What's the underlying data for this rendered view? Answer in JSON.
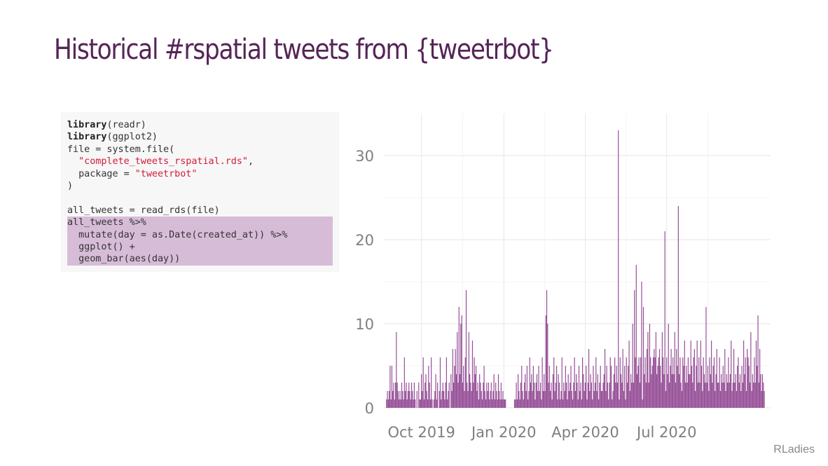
{
  "slide": {
    "title": "Historical #rspatial tweets from {tweetrbot}",
    "footer": "RLadies"
  },
  "code": {
    "lines": [
      {
        "k": "library",
        "r": "(readr)"
      },
      {
        "k": "library",
        "r": "(ggplot2)"
      },
      {
        "t": "file = system.file("
      },
      {
        "s": "\"complete_tweets_rspatial.rds\"",
        "r": ",",
        "indent": "  "
      },
      {
        "t": "  package = ",
        "s": "\"tweetrbot\""
      },
      {
        "t": ")"
      },
      {
        "t": ""
      },
      {
        "t": "all_tweets = read_rds(file)"
      },
      {
        "t": "all_tweets %>%",
        "hl": true
      },
      {
        "t": "  mutate(day = as.Date(created_at)) %>%",
        "hl": true
      },
      {
        "t": "  ggplot() +",
        "hl": true
      },
      {
        "t": "  geom_bar(aes(day))",
        "hl": true
      }
    ]
  },
  "colors": {
    "title": "#562457",
    "bars": "#88398a",
    "highlight": "#d7bcd8",
    "string": "#d01c39",
    "grid": "#ebebeb",
    "axis_text": "#7f7f7f"
  },
  "chart_data": {
    "type": "bar",
    "xlabel": "",
    "ylabel": "",
    "x_range": [
      "2019-08-20",
      "2020-10-25"
    ],
    "ylim": [
      0,
      35
    ],
    "y_ticks": [
      0,
      10,
      20,
      30
    ],
    "x_ticks": [
      {
        "date": "2019-10-01",
        "label": "Oct 2019"
      },
      {
        "date": "2020-01-01",
        "label": "Jan 2020"
      },
      {
        "date": "2020-04-01",
        "label": "Apr 2020"
      },
      {
        "date": "2020-07-01",
        "label": "Jul 2020"
      }
    ],
    "grid": true,
    "legend": "none",
    "series": [
      {
        "start_date": "2019-08-23",
        "values": [
          1,
          2,
          1,
          2,
          5,
          1,
          5,
          2,
          3,
          1,
          3,
          9,
          3,
          2,
          1,
          2,
          1,
          3,
          2,
          1,
          6,
          2,
          3,
          1,
          2,
          3,
          2,
          1,
          3,
          2,
          1,
          3,
          1,
          0,
          2,
          0,
          3,
          1,
          1,
          4,
          2,
          6,
          1,
          3,
          4,
          2,
          1,
          5,
          3,
          1,
          6,
          1,
          0,
          1,
          2,
          4,
          1,
          3,
          0,
          2,
          6,
          1,
          2,
          3,
          2,
          1,
          3,
          6,
          1,
          2,
          3,
          0,
          4,
          2,
          7,
          3,
          5,
          7,
          4,
          9,
          3,
          12,
          4,
          10,
          11,
          3,
          5,
          2,
          6,
          14,
          3,
          2,
          9,
          4,
          3,
          2,
          8,
          3,
          6,
          4,
          5,
          2,
          3,
          1,
          4,
          3,
          2,
          1,
          3,
          5,
          2,
          1,
          3,
          2,
          3,
          1,
          2,
          3,
          1,
          2,
          4,
          1,
          3,
          2,
          1,
          4,
          2,
          1,
          3,
          1,
          2,
          1,
          1,
          1,
          0,
          0,
          0,
          0,
          0,
          0,
          0,
          0,
          0,
          1,
          1,
          3,
          1,
          4,
          2,
          1,
          3,
          5,
          2,
          1,
          3,
          4,
          2,
          5,
          1,
          2,
          6,
          3,
          4,
          2,
          5,
          3,
          1,
          3,
          4,
          2,
          5,
          2,
          3,
          1,
          6,
          2,
          4,
          2,
          11,
          14,
          10,
          3,
          5,
          2,
          3,
          1,
          4,
          6,
          2,
          3,
          5,
          1,
          4,
          3,
          1,
          2,
          6,
          1,
          3,
          2,
          5,
          3,
          1,
          4,
          2,
          3,
          5,
          2,
          1,
          3,
          6,
          2,
          4,
          3,
          1,
          5,
          2,
          3,
          1,
          6,
          4,
          2,
          3,
          5,
          1,
          3,
          7,
          2,
          4,
          3,
          1,
          5,
          2,
          3,
          6,
          2,
          4,
          1,
          3,
          5,
          2,
          2,
          3,
          4,
          7,
          2,
          5,
          3,
          1,
          3,
          6,
          5,
          1,
          2,
          4,
          6,
          3,
          5,
          3,
          33,
          1,
          6,
          4,
          3,
          7,
          2,
          5,
          1,
          6,
          3,
          5,
          8,
          2,
          4,
          3,
          10,
          3,
          14,
          6,
          17,
          4,
          5,
          6,
          3,
          6,
          15,
          1,
          12,
          4,
          6,
          3,
          7,
          9,
          3,
          10,
          6,
          4,
          5,
          6,
          7,
          6,
          9,
          4,
          5,
          6,
          7,
          5,
          3,
          9,
          6,
          4,
          21,
          2,
          6,
          4,
          10,
          3,
          5,
          7,
          4,
          6,
          4,
          9,
          3,
          7,
          5,
          24,
          4,
          6,
          3,
          2,
          6,
          5,
          8,
          3,
          5,
          3,
          6,
          4,
          4,
          8,
          5,
          3,
          6,
          7,
          2,
          5,
          8,
          3,
          6,
          3,
          8,
          5,
          2,
          6,
          4,
          3,
          12,
          3,
          5,
          2,
          6,
          4,
          8,
          3,
          5,
          6,
          2,
          4,
          7,
          3,
          3,
          6,
          2,
          4,
          3,
          5,
          3,
          7,
          2,
          4,
          3,
          6,
          3,
          4,
          8,
          2,
          3,
          7,
          3,
          4,
          2,
          5,
          6,
          3,
          4,
          2,
          5,
          3,
          8,
          4,
          6,
          2,
          7,
          6,
          5,
          3,
          9,
          2,
          4,
          3,
          6,
          3,
          8,
          5,
          11,
          3,
          7,
          4,
          2,
          4,
          3,
          2
        ]
      }
    ]
  }
}
